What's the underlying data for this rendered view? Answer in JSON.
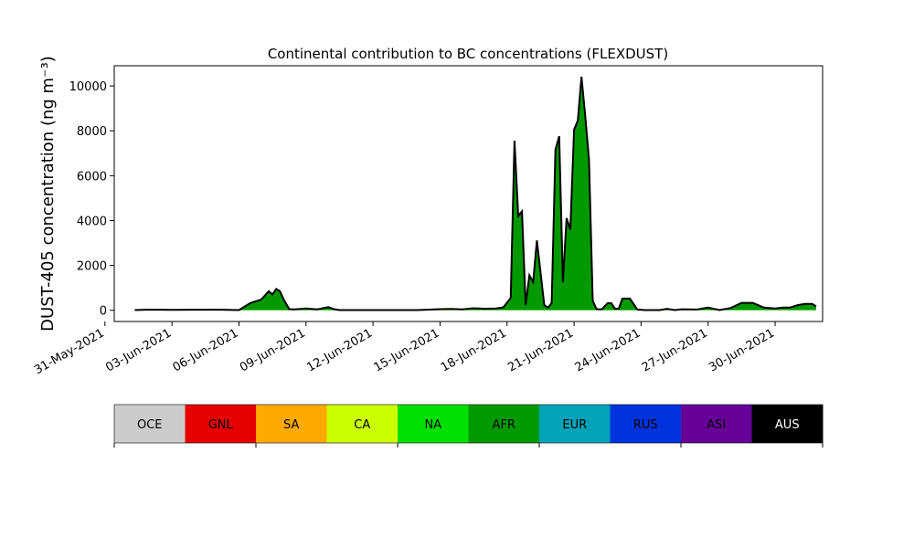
{
  "chart_data": {
    "type": "area",
    "title": "Continental contribution to BC concentrations (FLEXDUST)",
    "xlabel": "",
    "ylabel": "DUST-405 concentration (ng m⁻³)",
    "ylim": [
      -500,
      10900
    ],
    "xlim": [
      "2021-05-31T10:00",
      "2021-07-02T03:00"
    ],
    "yticks": [
      0,
      2000,
      4000,
      6000,
      8000,
      10000
    ],
    "xticks": [
      "31-May-2021",
      "03-Jun-2021",
      "06-Jun-2021",
      "09-Jun-2021",
      "12-Jun-2021",
      "15-Jun-2021",
      "18-Jun-2021",
      "21-Jun-2021",
      "24-Jun-2021",
      "27-Jun-2021",
      "30-Jun-2021"
    ],
    "xtick_dates": [
      "2021-05-31",
      "2021-06-03",
      "2021-06-06",
      "2021-06-09",
      "2021-06-12",
      "2021-06-15",
      "2021-06-18",
      "2021-06-21",
      "2021-06-24",
      "2021-06-27",
      "2021-06-30"
    ],
    "stacked": true,
    "grid": false,
    "dominant_series": "AFR",
    "x": [
      "2021-06-01T08:00",
      "2021-06-02T00:00",
      "2021-06-03T00:00",
      "2021-06-05T00:00",
      "2021-06-06T00:00",
      "2021-06-06T12:00",
      "2021-06-07T00:00",
      "2021-06-07T08:00",
      "2021-06-07T12:00",
      "2021-06-07T16:00",
      "2021-06-07T20:00",
      "2021-06-08T00:00",
      "2021-06-08T06:00",
      "2021-06-08T12:00",
      "2021-06-09T00:00",
      "2021-06-09T12:00",
      "2021-06-10T00:00",
      "2021-06-10T06:00",
      "2021-06-10T12:00",
      "2021-06-11T00:00",
      "2021-06-12T00:00",
      "2021-06-13T00:00",
      "2021-06-14T00:00",
      "2021-06-15T00:00",
      "2021-06-15T12:00",
      "2021-06-16T00:00",
      "2021-06-16T12:00",
      "2021-06-17T00:00",
      "2021-06-17T12:00",
      "2021-06-17T20:00",
      "2021-06-18T04:00",
      "2021-06-18T08:00",
      "2021-06-18T12:00",
      "2021-06-18T16:00",
      "2021-06-18T20:00",
      "2021-06-19T00:00",
      "2021-06-19T04:00",
      "2021-06-19T08:00",
      "2021-06-19T16:00",
      "2021-06-19T20:00",
      "2021-06-20T00:00",
      "2021-06-20T04:00",
      "2021-06-20T08:00",
      "2021-06-20T12:00",
      "2021-06-20T16:00",
      "2021-06-20T20:00",
      "2021-06-21T00:00",
      "2021-06-21T04:00",
      "2021-06-21T08:00",
      "2021-06-21T12:00",
      "2021-06-21T16:00",
      "2021-06-21T20:00",
      "2021-06-22T00:00",
      "2021-06-22T02:00",
      "2021-06-22T06:00",
      "2021-06-22T12:00",
      "2021-06-22T16:00",
      "2021-06-22T20:00",
      "2021-06-23T00:00",
      "2021-06-23T04:00",
      "2021-06-23T12:00",
      "2021-06-23T20:00",
      "2021-06-24T04:00",
      "2021-06-24T12:00",
      "2021-06-24T20:00",
      "2021-06-25T04:00",
      "2021-06-25T12:00",
      "2021-06-25T20:00",
      "2021-06-26T12:00",
      "2021-06-27T00:00",
      "2021-06-27T12:00",
      "2021-06-28T00:00",
      "2021-06-28T12:00",
      "2021-06-29T00:00",
      "2021-06-29T12:00",
      "2021-06-30T00:00",
      "2021-06-30T08:00",
      "2021-06-30T16:00",
      "2021-07-01T00:00",
      "2021-07-01T08:00",
      "2021-07-01T16:00",
      "2021-07-01T20:00"
    ],
    "series_order": [
      "OCE",
      "GNL",
      "SA",
      "CA",
      "NA",
      "AFR",
      "EUR",
      "RUS",
      "ASI",
      "AUS"
    ],
    "series": [
      {
        "name": "OCE",
        "color": "#cccccc",
        "values": [
          0,
          0,
          0,
          0,
          0,
          0,
          0,
          0,
          0,
          0,
          0,
          0,
          0,
          0,
          0,
          0,
          0,
          0,
          0,
          0,
          0,
          0,
          0,
          0,
          0,
          0,
          0,
          0,
          0,
          0,
          0,
          0,
          0,
          0,
          0,
          0,
          0,
          0,
          0,
          0,
          0,
          0,
          0,
          0,
          0,
          0,
          0,
          0,
          0,
          0,
          0,
          0,
          0,
          0,
          0,
          0,
          0,
          0,
          0,
          0,
          0,
          0,
          0,
          0,
          0,
          0,
          0,
          0,
          0,
          0,
          0,
          0,
          0,
          0,
          0,
          0,
          0,
          0,
          0,
          0,
          0,
          0
        ]
      },
      {
        "name": "GNL",
        "color": "#e60000",
        "values": [
          0,
          0,
          0,
          0,
          0,
          0,
          0,
          0,
          0,
          0,
          0,
          0,
          0,
          0,
          0,
          0,
          0,
          0,
          0,
          0,
          0,
          0,
          0,
          0,
          0,
          0,
          0,
          0,
          0,
          0,
          0,
          0,
          0,
          0,
          0,
          0,
          0,
          0,
          0,
          0,
          0,
          0,
          0,
          0,
          0,
          0,
          0,
          0,
          0,
          0,
          0,
          0,
          0,
          0,
          0,
          0,
          0,
          0,
          0,
          0,
          0,
          0,
          0,
          0,
          0,
          0,
          0,
          0,
          0,
          0,
          0,
          0,
          0,
          0,
          0,
          0,
          0,
          0,
          0,
          0,
          0,
          0
        ]
      },
      {
        "name": "SA",
        "color": "#ffaa00",
        "values": [
          0,
          0,
          0,
          0,
          0,
          0,
          0,
          0,
          0,
          0,
          0,
          0,
          0,
          0,
          0,
          0,
          0,
          0,
          0,
          0,
          0,
          0,
          0,
          0,
          0,
          0,
          0,
          0,
          0,
          0,
          0,
          0,
          0,
          0,
          0,
          0,
          0,
          0,
          0,
          0,
          0,
          0,
          0,
          0,
          0,
          0,
          0,
          0,
          0,
          0,
          0,
          0,
          0,
          0,
          0,
          0,
          0,
          0,
          0,
          0,
          0,
          0,
          0,
          0,
          0,
          0,
          0,
          0,
          0,
          0,
          0,
          0,
          0,
          0,
          0,
          0,
          0,
          0,
          0,
          0,
          0,
          0
        ]
      },
      {
        "name": "CA",
        "color": "#ccff00",
        "values": [
          5,
          5,
          5,
          5,
          5,
          5,
          5,
          5,
          5,
          5,
          5,
          5,
          5,
          5,
          5,
          5,
          5,
          5,
          5,
          5,
          5,
          5,
          5,
          5,
          5,
          5,
          5,
          5,
          5,
          5,
          5,
          5,
          5,
          5,
          5,
          5,
          5,
          5,
          5,
          5,
          5,
          5,
          5,
          5,
          5,
          5,
          5,
          5,
          5,
          5,
          5,
          5,
          5,
          5,
          5,
          5,
          5,
          5,
          5,
          5,
          5,
          5,
          5,
          5,
          5,
          5,
          5,
          5,
          5,
          5,
          5,
          5,
          5,
          5,
          5,
          5,
          5,
          5,
          5,
          5,
          5,
          5
        ]
      },
      {
        "name": "NA",
        "color": "#00e000",
        "values": [
          5,
          5,
          5,
          5,
          5,
          5,
          5,
          5,
          5,
          5,
          5,
          5,
          5,
          5,
          5,
          5,
          5,
          5,
          5,
          5,
          5,
          5,
          5,
          5,
          5,
          5,
          5,
          5,
          5,
          5,
          5,
          5,
          5,
          5,
          5,
          5,
          5,
          5,
          5,
          5,
          5,
          5,
          5,
          5,
          5,
          5,
          5,
          5,
          5,
          5,
          5,
          5,
          5,
          5,
          5,
          5,
          5,
          5,
          5,
          5,
          5,
          5,
          5,
          5,
          5,
          5,
          5,
          5,
          5,
          5,
          5,
          5,
          5,
          5,
          5,
          5,
          5,
          5,
          5,
          5,
          5,
          5
        ]
      },
      {
        "name": "AFR",
        "color": "#009900",
        "values": [
          0,
          20,
          10,
          20,
          0,
          300,
          450,
          800,
          650,
          900,
          800,
          450,
          30,
          20,
          60,
          20,
          120,
          30,
          0,
          0,
          0,
          0,
          0,
          30,
          40,
          20,
          70,
          50,
          60,
          100,
          500,
          7400,
          4100,
          4300,
          200,
          1500,
          1200,
          3000,
          200,
          100,
          300,
          7000,
          7600,
          1200,
          4000,
          3500,
          7900,
          8300,
          10200,
          8500,
          6600,
          400,
          40,
          30,
          30,
          300,
          300,
          50,
          60,
          500,
          500,
          20,
          0,
          0,
          0,
          50,
          0,
          30,
          20,
          100,
          0,
          80,
          300,
          300,
          100,
          60,
          100,
          100,
          200,
          250,
          250,
          150
        ]
      },
      {
        "name": "EUR",
        "color": "#00a3b8",
        "values": [
          0,
          0,
          0,
          0,
          0,
          0,
          0,
          0,
          0,
          0,
          0,
          0,
          0,
          0,
          0,
          0,
          0,
          0,
          0,
          0,
          0,
          0,
          0,
          0,
          0,
          0,
          0,
          0,
          0,
          0,
          0,
          0,
          0,
          0,
          0,
          0,
          0,
          0,
          0,
          0,
          0,
          0,
          0,
          0,
          0,
          0,
          0,
          0,
          0,
          0,
          0,
          0,
          0,
          0,
          0,
          0,
          0,
          0,
          0,
          0,
          0,
          0,
          0,
          0,
          0,
          0,
          0,
          0,
          0,
          0,
          0,
          0,
          0,
          0,
          0,
          0,
          0,
          0,
          0,
          0,
          0,
          0
        ]
      },
      {
        "name": "RUS",
        "color": "#0033dd",
        "values": [
          0,
          0,
          0,
          0,
          0,
          0,
          0,
          0,
          0,
          0,
          0,
          0,
          0,
          0,
          0,
          0,
          0,
          0,
          0,
          0,
          0,
          0,
          0,
          0,
          0,
          0,
          0,
          0,
          0,
          0,
          0,
          0,
          0,
          0,
          0,
          0,
          0,
          0,
          0,
          0,
          0,
          0,
          0,
          0,
          0,
          0,
          0,
          0,
          0,
          0,
          0,
          0,
          0,
          0,
          0,
          0,
          0,
          0,
          0,
          0,
          0,
          0,
          0,
          0,
          0,
          0,
          0,
          0,
          0,
          0,
          0,
          0,
          0,
          0,
          0,
          0,
          0,
          0,
          0,
          0,
          0,
          0
        ]
      },
      {
        "name": "ASI",
        "color": "#660099",
        "values": [
          0,
          0,
          0,
          0,
          0,
          10,
          20,
          40,
          40,
          40,
          40,
          30,
          10,
          10,
          10,
          10,
          10,
          10,
          0,
          0,
          0,
          0,
          0,
          10,
          10,
          10,
          10,
          10,
          10,
          20,
          40,
          150,
          100,
          100,
          20,
          50,
          50,
          100,
          20,
          10,
          20,
          150,
          150,
          40,
          100,
          80,
          150,
          150,
          200,
          150,
          120,
          20,
          10,
          5,
          5,
          10,
          10,
          5,
          5,
          10,
          10,
          5,
          0,
          0,
          0,
          5,
          0,
          5,
          5,
          10,
          0,
          10,
          20,
          20,
          10,
          10,
          10,
          10,
          20,
          20,
          20,
          10
        ]
      },
      {
        "name": "AUS",
        "color": "#000000",
        "values": [
          0,
          0,
          0,
          0,
          0,
          0,
          0,
          0,
          0,
          0,
          0,
          0,
          0,
          0,
          0,
          0,
          0,
          0,
          0,
          0,
          0,
          0,
          0,
          0,
          0,
          0,
          0,
          0,
          0,
          0,
          0,
          0,
          0,
          0,
          0,
          0,
          0,
          0,
          0,
          0,
          0,
          0,
          0,
          0,
          0,
          0,
          0,
          0,
          0,
          0,
          0,
          0,
          0,
          0,
          0,
          0,
          0,
          0,
          0,
          0,
          0,
          0,
          0,
          0,
          0,
          0,
          0,
          0,
          0,
          0,
          0,
          0,
          0,
          0,
          0,
          0,
          0,
          0,
          0,
          0,
          0,
          0
        ]
      }
    ],
    "total_outline_color": "#000000",
    "colorbar": {
      "labels": [
        "OCE",
        "GNL",
        "SA",
        "CA",
        "NA",
        "AFR",
        "EUR",
        "RUS",
        "ASI",
        "AUS"
      ],
      "colors": [
        "#cccccc",
        "#e60000",
        "#ffaa00",
        "#ccff00",
        "#00e000",
        "#009900",
        "#00a3b8",
        "#0033dd",
        "#660099",
        "#000000"
      ],
      "text_colors": [
        "#000000",
        "#000000",
        "#000000",
        "#000000",
        "#000000",
        "#000000",
        "#000000",
        "#000000",
        "#000000",
        "#ffffff"
      ]
    }
  }
}
